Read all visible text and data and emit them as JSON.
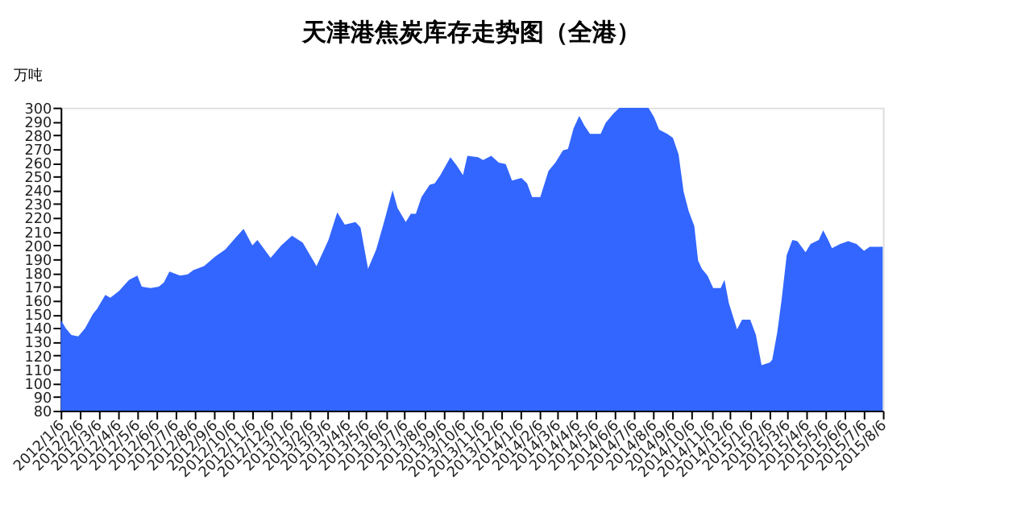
{
  "chart_data": {
    "type": "area",
    "title": "天津港焦炭库存走势图（全港）",
    "ylabel": "万吨",
    "x": [
      "2012-01-06",
      "2012-01-14",
      "2012-01-23",
      "2012-02-03",
      "2012-02-14",
      "2012-02-26",
      "2012-03-04",
      "2012-03-17",
      "2012-03-25",
      "2012-04-08",
      "2012-04-16",
      "2012-04-24",
      "2012-05-07",
      "2012-05-14",
      "2012-05-28",
      "2012-06-10",
      "2012-06-18",
      "2012-06-27",
      "2012-07-14",
      "2012-07-26",
      "2012-08-04",
      "2012-08-21",
      "2012-09-08",
      "2012-09-24",
      "2012-10-11",
      "2012-10-23",
      "2012-11-06",
      "2012-11-14",
      "2012-12-05",
      "2012-12-22",
      "2013-01-08",
      "2013-01-25",
      "2013-02-16",
      "2013-03-07",
      "2013-03-21",
      "2013-04-02",
      "2013-04-19",
      "2013-04-27",
      "2013-05-09",
      "2013-05-22",
      "2013-06-04",
      "2013-06-17",
      "2013-06-25",
      "2013-07-08",
      "2013-07-16",
      "2013-07-24",
      "2013-08-02",
      "2013-08-15",
      "2013-08-23",
      "2013-09-01",
      "2013-09-17",
      "2013-09-27",
      "2013-10-07",
      "2013-10-14",
      "2013-10-31",
      "2013-11-08",
      "2013-11-21",
      "2013-12-03",
      "2013-12-14",
      "2013-12-24",
      "2014-01-08",
      "2014-01-17",
      "2014-01-25",
      "2014-02-07",
      "2014-02-20",
      "2014-03-03",
      "2014-03-15",
      "2014-03-23",
      "2014-04-01",
      "2014-04-10",
      "2014-04-18",
      "2014-04-27",
      "2014-05-14",
      "2014-05-22",
      "2014-06-04",
      "2014-06-13",
      "2014-07-06",
      "2014-07-29",
      "2014-08-07",
      "2014-08-15",
      "2014-08-28",
      "2014-09-06",
      "2014-09-15",
      "2014-09-23",
      "2014-10-01",
      "2014-10-10",
      "2014-10-16",
      "2014-10-22",
      "2014-10-31",
      "2014-11-09",
      "2014-11-21",
      "2014-11-27",
      "2014-12-04",
      "2014-12-17",
      "2014-12-25",
      "2015-01-07",
      "2015-01-16",
      "2015-01-25",
      "2015-02-07",
      "2015-02-11",
      "2015-02-19",
      "2015-02-26",
      "2015-03-06",
      "2015-03-15",
      "2015-03-23",
      "2015-04-05",
      "2015-04-13",
      "2015-04-26",
      "2015-05-03",
      "2015-05-11",
      "2015-05-17",
      "2015-05-30",
      "2015-06-12",
      "2015-06-25",
      "2015-07-07",
      "2015-07-16",
      "2015-07-29",
      "2015-08-06"
    ],
    "series": [
      {
        "color": "#3366ff",
        "values": [
          146,
          140,
          135,
          134,
          140,
          150,
          154,
          164,
          162,
          167,
          171,
          175,
          178,
          170,
          169,
          170,
          173,
          181,
          178,
          179,
          182,
          185,
          192,
          197,
          206,
          212,
          200,
          204,
          191,
          200,
          207,
          202,
          185,
          204,
          224,
          215,
          217,
          213,
          183,
          197,
          218,
          240,
          227,
          217,
          223,
          223,
          235,
          244,
          245,
          251,
          264,
          258,
          251,
          265,
          264,
          262,
          265,
          260,
          259,
          247,
          249,
          245,
          235,
          235,
          254,
          260,
          269,
          270,
          285,
          294,
          287,
          281,
          281,
          289,
          296,
          300,
          300,
          300,
          293,
          284,
          281,
          278,
          266,
          239,
          225,
          214,
          189,
          183,
          178,
          169,
          169,
          175,
          158,
          139,
          146,
          146,
          135,
          113,
          115,
          117,
          137,
          161,
          193,
          204,
          203,
          195,
          201,
          204,
          211,
          204,
          198,
          201,
          203,
          201,
          196,
          199,
          199,
          199
        ]
      }
    ],
    "xlim": [
      "2012-01-06",
      "2015-08-06"
    ],
    "xticks": [
      {
        "value": "2012-01-06",
        "label": "2012/1/6"
      },
      {
        "value": "2012-02-06",
        "label": "2012/2/6"
      },
      {
        "value": "2012-03-06",
        "label": "2012/3/6"
      },
      {
        "value": "2012-04-06",
        "label": "2012/4/6"
      },
      {
        "value": "2012-05-06",
        "label": "2012/5/6"
      },
      {
        "value": "2012-06-06",
        "label": "2012/6/6"
      },
      {
        "value": "2012-07-06",
        "label": "2012/7/6"
      },
      {
        "value": "2012-08-06",
        "label": "2012/8/6"
      },
      {
        "value": "2012-09-06",
        "label": "2012/9/6"
      },
      {
        "value": "2012-10-06",
        "label": "2012/10/6"
      },
      {
        "value": "2012-11-06",
        "label": "2012/11/6"
      },
      {
        "value": "2012-12-06",
        "label": "2012/12/6"
      },
      {
        "value": "2013-01-06",
        "label": "2013/1/6"
      },
      {
        "value": "2013-02-06",
        "label": "2013/2/6"
      },
      {
        "value": "2013-03-06",
        "label": "2013/3/6"
      },
      {
        "value": "2013-04-06",
        "label": "2013/4/6"
      },
      {
        "value": "2013-05-06",
        "label": "2013/5/6"
      },
      {
        "value": "2013-06-06",
        "label": "2013/6/6"
      },
      {
        "value": "2013-07-06",
        "label": "2013/7/6"
      },
      {
        "value": "2013-08-06",
        "label": "2013/8/6"
      },
      {
        "value": "2013-09-06",
        "label": "2013/9/6"
      },
      {
        "value": "2013-10-06",
        "label": "2013/10/6"
      },
      {
        "value": "2013-11-06",
        "label": "2013/11/6"
      },
      {
        "value": "2013-12-06",
        "label": "2013/12/6"
      },
      {
        "value": "2014-01-06",
        "label": "2014/1/6"
      },
      {
        "value": "2014-02-06",
        "label": "2014/2/6"
      },
      {
        "value": "2014-03-06",
        "label": "2014/3/6"
      },
      {
        "value": "2014-04-06",
        "label": "2014/4/6"
      },
      {
        "value": "2014-05-06",
        "label": "2014/5/6"
      },
      {
        "value": "2014-06-06",
        "label": "2014/6/6"
      },
      {
        "value": "2014-07-06",
        "label": "2014/7/6"
      },
      {
        "value": "2014-08-06",
        "label": "2014/8/6"
      },
      {
        "value": "2014-09-06",
        "label": "2014/9/6"
      },
      {
        "value": "2014-10-06",
        "label": "2014/10/6"
      },
      {
        "value": "2014-11-06",
        "label": "2014/11/6"
      },
      {
        "value": "2014-12-06",
        "label": "2014/12/6"
      },
      {
        "value": "2015-01-06",
        "label": "2015/1/6"
      },
      {
        "value": "2015-02-06",
        "label": "2015/2/6"
      },
      {
        "value": "2015-03-06",
        "label": "2015/3/6"
      },
      {
        "value": "2015-04-06",
        "label": "2015/4/6"
      },
      {
        "value": "2015-05-06",
        "label": "2015/5/6"
      },
      {
        "value": "2015-06-06",
        "label": "2015/6/6"
      },
      {
        "value": "2015-07-06",
        "label": "2015/7/6"
      },
      {
        "value": "2015-08-06",
        "label": "2015/8/6"
      }
    ],
    "ylim": [
      80,
      300
    ],
    "yticks": [
      80,
      90,
      100,
      110,
      120,
      130,
      140,
      150,
      160,
      170,
      180,
      190,
      200,
      210,
      220,
      230,
      240,
      250,
      260,
      270,
      280,
      290,
      300
    ],
    "grid": false
  }
}
